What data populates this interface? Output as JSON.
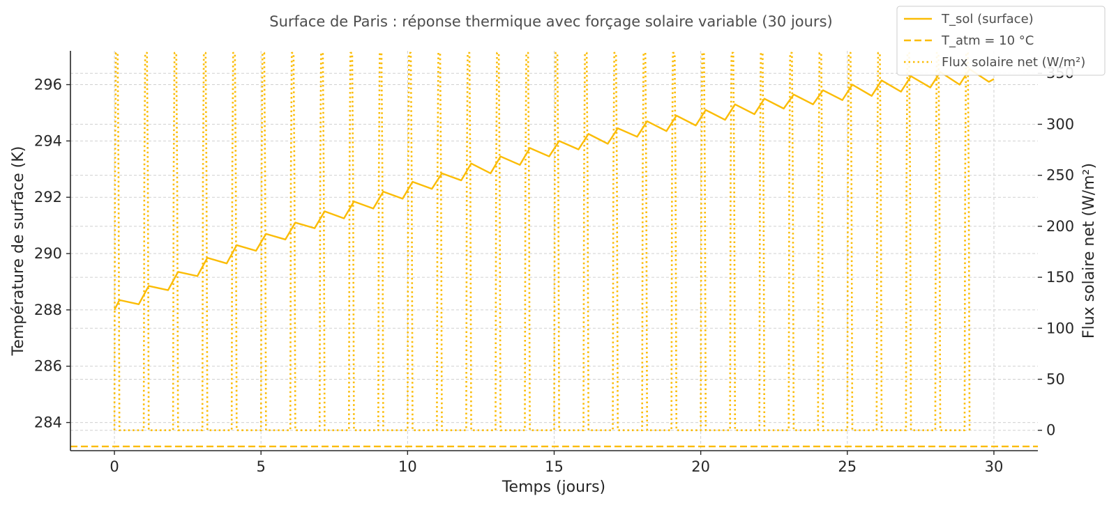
{
  "chart_data": {
    "type": "line",
    "title": "Surface de Paris : réponse thermique avec forçage solaire variable (30 jours)",
    "xlabel": "Temps (jours)",
    "ylabel": "Température de surface (K)",
    "y2label": "Flux solaire net (W/m²)",
    "xlim": [
      -1.5,
      31.5
    ],
    "ylim": [
      283.0,
      297.2
    ],
    "y2lim": [
      -20,
      372
    ],
    "x_ticks": [
      0,
      5,
      10,
      15,
      20,
      25,
      30
    ],
    "y_ticks": [
      284,
      286,
      288,
      290,
      292,
      294,
      296
    ],
    "y2_ticks": [
      0,
      50,
      100,
      150,
      200,
      250,
      300,
      350
    ],
    "grid": true,
    "legend_position": "top-right",
    "color": "#fbbc05",
    "series": [
      {
        "name": "T_sol (surface)",
        "axis": "left",
        "style": "solid",
        "x": [
          0,
          0.17,
          0.83,
          1.17,
          1.83,
          2.17,
          2.83,
          3.17,
          3.83,
          4.17,
          4.83,
          5.17,
          5.83,
          6.17,
          6.83,
          7.17,
          7.83,
          8.17,
          8.83,
          9.17,
          9.83,
          10.17,
          10.83,
          11.17,
          11.83,
          12.17,
          12.83,
          13.17,
          13.83,
          14.17,
          14.83,
          15.17,
          15.83,
          16.17,
          16.83,
          17.17,
          17.83,
          18.17,
          18.83,
          19.17,
          19.83,
          20.17,
          20.83,
          21.17,
          21.83,
          22.17,
          22.83,
          23.17,
          23.83,
          24.17,
          24.83,
          25.17,
          25.83,
          26.17,
          26.83,
          27.17,
          27.83,
          28.17,
          28.83,
          29.17,
          29.83,
          30
        ],
        "y": [
          288.0,
          288.35,
          288.2,
          288.85,
          288.7,
          289.35,
          289.2,
          289.85,
          289.65,
          290.3,
          290.1,
          290.7,
          290.5,
          291.1,
          290.9,
          291.5,
          291.25,
          291.85,
          291.6,
          292.2,
          291.95,
          292.55,
          292.3,
          292.85,
          292.6,
          293.2,
          292.85,
          293.45,
          293.15,
          293.75,
          293.45,
          294.0,
          293.7,
          294.25,
          293.9,
          294.45,
          294.15,
          294.7,
          294.35,
          294.9,
          294.55,
          295.1,
          294.75,
          295.3,
          294.95,
          295.5,
          295.15,
          295.65,
          295.3,
          295.8,
          295.45,
          296.0,
          295.6,
          296.15,
          295.75,
          296.3,
          295.9,
          296.45,
          296.0,
          296.55,
          296.1,
          296.2
        ]
      },
      {
        "name": "T_atm = 10 °C",
        "axis": "left",
        "style": "dashed",
        "x": [
          -1.5,
          31.5
        ],
        "y": [
          283.15,
          283.15
        ]
      },
      {
        "name": "Flux solaire net (W/m²)",
        "axis": "right",
        "style": "dotted",
        "note_days": 30,
        "day_profile": {
          "x_offsets": [
            0,
            0.02,
            0.05,
            0.08,
            0.11,
            0.14,
            0.17
          ],
          "values": [
            0,
            250,
            370,
            370,
            370,
            250,
            0
          ]
        }
      }
    ]
  }
}
